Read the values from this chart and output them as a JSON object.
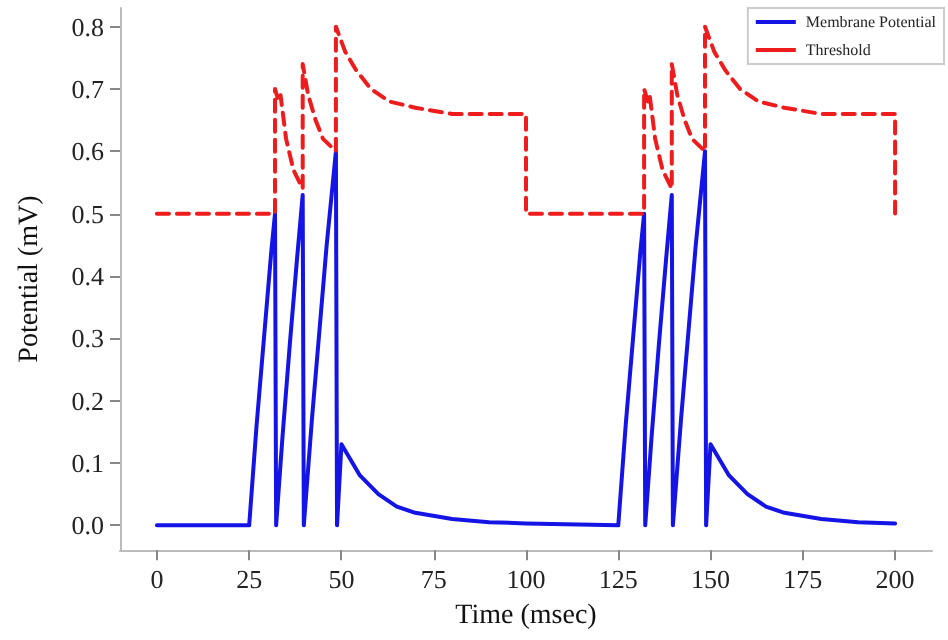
{
  "chart_data": {
    "type": "line",
    "xlabel": "Time (msec)",
    "ylabel": "Potential (mV)",
    "xlim": [
      -10,
      210
    ],
    "ylim": [
      -0.04,
      0.83
    ],
    "xticks": [
      0,
      25,
      50,
      75,
      100,
      125,
      150,
      175,
      200
    ],
    "yticks": [
      {
        "value": 0,
        "label": "0.0"
      },
      0.1,
      0.2,
      0.3,
      0.4,
      0.5,
      0.6,
      0.7,
      0.8
    ],
    "grid": false,
    "legend": "top right",
    "marker": "none",
    "series": [
      {
        "name": "Membrane Potential",
        "color": "#1414e6",
        "line_style": "solid",
        "x": [
          0,
          25,
          26,
          27,
          28,
          29,
          30,
          31,
          32,
          32.3,
          34,
          36,
          38,
          39.5,
          39.8,
          42,
          44,
          46,
          48.5,
          48.8,
          50,
          52,
          55,
          60,
          65,
          70,
          80,
          90,
          100,
          125,
          126,
          127,
          128,
          129,
          130,
          131,
          132,
          132.3,
          134,
          136,
          138,
          139.5,
          139.8,
          142,
          144,
          146,
          148.5,
          148.8,
          150,
          152,
          155,
          160,
          165,
          170,
          180,
          190,
          200
        ],
        "values": [
          0,
          0,
          0.08,
          0.16,
          0.23,
          0.3,
          0.37,
          0.44,
          0.5,
          0,
          0.14,
          0.29,
          0.43,
          0.53,
          0,
          0.17,
          0.31,
          0.45,
          0.6,
          0,
          0.13,
          0.11,
          0.08,
          0.05,
          0.03,
          0.02,
          0.01,
          0.005,
          0.003,
          0,
          0.08,
          0.16,
          0.23,
          0.3,
          0.37,
          0.44,
          0.5,
          0,
          0.14,
          0.29,
          0.43,
          0.53,
          0,
          0.17,
          0.31,
          0.45,
          0.6,
          0,
          0.13,
          0.11,
          0.08,
          0.05,
          0.03,
          0.02,
          0.01,
          0.005,
          0.003
        ]
      },
      {
        "name": "Threshold",
        "color": "#ee1c1c",
        "line_style": "dashed",
        "x": [
          0,
          32,
          32,
          33,
          33.5,
          35,
          37,
          39.5,
          39.5,
          41,
          43,
          45,
          48.5,
          48.5,
          51,
          54,
          58,
          63,
          70,
          80,
          100,
          100,
          132,
          132,
          133,
          133.5,
          135,
          137,
          139.5,
          139.5,
          141,
          143,
          145,
          148.5,
          148.5,
          151,
          154,
          158,
          163,
          170,
          180,
          200,
          200
        ],
        "values": [
          0.5,
          0.5,
          0.7,
          0.68,
          0.69,
          0.62,
          0.57,
          0.54,
          0.74,
          0.69,
          0.65,
          0.62,
          0.6,
          0.8,
          0.76,
          0.73,
          0.7,
          0.68,
          0.67,
          0.66,
          0.66,
          0.5,
          0.5,
          0.7,
          0.68,
          0.69,
          0.62,
          0.57,
          0.54,
          0.74,
          0.69,
          0.65,
          0.62,
          0.6,
          0.8,
          0.76,
          0.73,
          0.7,
          0.68,
          0.67,
          0.66,
          0.66,
          0.5
        ]
      }
    ]
  }
}
